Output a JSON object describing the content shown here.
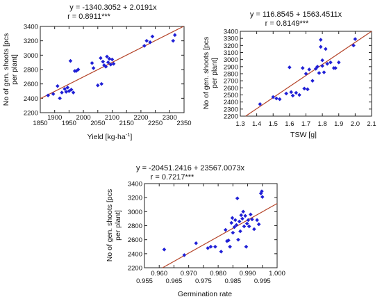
{
  "chart_data": [
    {
      "type": "scatter",
      "equation": "y = -1340.3052 + 2.0191x",
      "r": "r = 0.8911***",
      "xlabel": "Yield [kg·ha",
      "xlabel_sup": "-1",
      "xlabel_end": "]",
      "ylabel_line1": "No of gen. shoots [pcs",
      "ylabel_line2": "per plant]",
      "xlim": [
        1850,
        2350
      ],
      "ylim": [
        2200,
        3400
      ],
      "x_major_ticks": [
        "1850",
        "1950",
        "2050",
        "2150",
        "2250",
        "2350"
      ],
      "x_minor_ticks": [
        "1900",
        "2000",
        "2100",
        "2200",
        "2300"
      ],
      "y_ticks": [
        "2200",
        "2400",
        "2600",
        "2800",
        "3000",
        "3200",
        "3400"
      ],
      "fit": {
        "intercept": -1340.3052,
        "slope": 2.0191
      },
      "marker_color": "#1f1fd6",
      "line_color": "#b5452a",
      "points": [
        {
          "x": 1877,
          "y": 2440
        },
        {
          "x": 1895,
          "y": 2460
        },
        {
          "x": 1910,
          "y": 2570
        },
        {
          "x": 1918,
          "y": 2400
        },
        {
          "x": 1925,
          "y": 2480
        },
        {
          "x": 1935,
          "y": 2530
        },
        {
          "x": 1940,
          "y": 2490
        },
        {
          "x": 1945,
          "y": 2550
        },
        {
          "x": 1950,
          "y": 2500
        },
        {
          "x": 1955,
          "y": 2920
        },
        {
          "x": 1958,
          "y": 2520
        },
        {
          "x": 1965,
          "y": 2480
        },
        {
          "x": 1970,
          "y": 2780
        },
        {
          "x": 1975,
          "y": 2780
        },
        {
          "x": 1982,
          "y": 2800
        },
        {
          "x": 2030,
          "y": 2890
        },
        {
          "x": 2035,
          "y": 2820
        },
        {
          "x": 2050,
          "y": 2580
        },
        {
          "x": 2060,
          "y": 2960
        },
        {
          "x": 2063,
          "y": 2600
        },
        {
          "x": 2068,
          "y": 2910
        },
        {
          "x": 2072,
          "y": 2860
        },
        {
          "x": 2078,
          "y": 2840
        },
        {
          "x": 2082,
          "y": 2980
        },
        {
          "x": 2086,
          "y": 2900
        },
        {
          "x": 2090,
          "y": 2950
        },
        {
          "x": 2095,
          "y": 2870
        },
        {
          "x": 2100,
          "y": 2940
        },
        {
          "x": 2105,
          "y": 2880
        },
        {
          "x": 2212,
          "y": 3130
        },
        {
          "x": 2220,
          "y": 3200
        },
        {
          "x": 2232,
          "y": 3180
        },
        {
          "x": 2240,
          "y": 3260
        },
        {
          "x": 2312,
          "y": 3200
        },
        {
          "x": 2318,
          "y": 3280
        }
      ]
    },
    {
      "type": "scatter",
      "equation": "y = 116.8545 + 1563.4511x",
      "r": "r = 0.8149***",
      "xlabel": "TSW [g]",
      "ylabel_line1": "No of gen. shoots [pcs",
      "ylabel_line2": "per plant]",
      "xlim": [
        1.3,
        2.1
      ],
      "ylim": [
        2200,
        3400
      ],
      "x_ticks": [
        "1.3",
        "1.4",
        "1.5",
        "1.6",
        "1.7",
        "1.8",
        "1.9",
        "2.0",
        "2.1"
      ],
      "y_ticks": [
        "2200",
        "2300",
        "2400",
        "2500",
        "2600",
        "2700",
        "2800",
        "2900",
        "3000",
        "3100",
        "3200",
        "3300",
        "3400"
      ],
      "fit": {
        "intercept": 116.8545,
        "slope": 1563.4511
      },
      "marker_color": "#1f1fd6",
      "line_color": "#b5452a",
      "points": [
        {
          "x": 1.42,
          "y": 2370
        },
        {
          "x": 1.5,
          "y": 2470
        },
        {
          "x": 1.52,
          "y": 2450
        },
        {
          "x": 1.54,
          "y": 2440
        },
        {
          "x": 1.58,
          "y": 2520
        },
        {
          "x": 1.6,
          "y": 2890
        },
        {
          "x": 1.61,
          "y": 2540
        },
        {
          "x": 1.62,
          "y": 2490
        },
        {
          "x": 1.64,
          "y": 2530
        },
        {
          "x": 1.66,
          "y": 2500
        },
        {
          "x": 1.68,
          "y": 2880
        },
        {
          "x": 1.69,
          "y": 2590
        },
        {
          "x": 1.7,
          "y": 2800
        },
        {
          "x": 1.71,
          "y": 2580
        },
        {
          "x": 1.72,
          "y": 2860
        },
        {
          "x": 1.74,
          "y": 2700
        },
        {
          "x": 1.76,
          "y": 2870
        },
        {
          "x": 1.77,
          "y": 2900
        },
        {
          "x": 1.78,
          "y": 2810
        },
        {
          "x": 1.79,
          "y": 3180
        },
        {
          "x": 1.79,
          "y": 3280
        },
        {
          "x": 1.8,
          "y": 2990
        },
        {
          "x": 1.8,
          "y": 2910
        },
        {
          "x": 1.81,
          "y": 2820
        },
        {
          "x": 1.82,
          "y": 3150
        },
        {
          "x": 1.83,
          "y": 2940
        },
        {
          "x": 1.85,
          "y": 2960
        },
        {
          "x": 1.87,
          "y": 2880
        },
        {
          "x": 1.88,
          "y": 2880
        },
        {
          "x": 1.9,
          "y": 2960
        },
        {
          "x": 1.99,
          "y": 3200
        },
        {
          "x": 2.0,
          "y": 3290
        }
      ]
    },
    {
      "type": "scatter",
      "equation": "y = -20451.2416 + 23567.0073x",
      "r": "r = 0.7217***",
      "xlabel": "Germination rate",
      "ylabel_line1": "No of gen. shoots [pcs",
      "ylabel_line2": "per plant]",
      "xlim": [
        0.955,
        1.0
      ],
      "ylim": [
        2200,
        3400
      ],
      "x_major_ticks": [
        "0.955",
        "0.965",
        "0.975",
        "0.985",
        "0.995"
      ],
      "x_minor_ticks": [
        "0.960",
        "0.970",
        "0.980",
        "0.990",
        "1.000"
      ],
      "y_ticks": [
        "2200",
        "2400",
        "2600",
        "2800",
        "3000",
        "3200",
        "3400"
      ],
      "fit": {
        "intercept": -20451.2416,
        "slope": 23567.0073
      },
      "marker_color": "#1f1fd6",
      "line_color": "#b5452a",
      "points": [
        {
          "x": 0.9617,
          "y": 2460
        },
        {
          "x": 0.9685,
          "y": 2380
        },
        {
          "x": 0.9725,
          "y": 2550
        },
        {
          "x": 0.9765,
          "y": 2480
        },
        {
          "x": 0.9775,
          "y": 2500
        },
        {
          "x": 0.979,
          "y": 2500
        },
        {
          "x": 0.981,
          "y": 2430
        },
        {
          "x": 0.9825,
          "y": 2740
        },
        {
          "x": 0.983,
          "y": 2580
        },
        {
          "x": 0.9835,
          "y": 2590
        },
        {
          "x": 0.984,
          "y": 2500
        },
        {
          "x": 0.9845,
          "y": 2840
        },
        {
          "x": 0.9848,
          "y": 2910
        },
        {
          "x": 0.985,
          "y": 2700
        },
        {
          "x": 0.9855,
          "y": 2780
        },
        {
          "x": 0.9858,
          "y": 2880
        },
        {
          "x": 0.9862,
          "y": 2810
        },
        {
          "x": 0.9865,
          "y": 3190
        },
        {
          "x": 0.9868,
          "y": 2600
        },
        {
          "x": 0.9872,
          "y": 2860
        },
        {
          "x": 0.9875,
          "y": 2720
        },
        {
          "x": 0.9878,
          "y": 2950
        },
        {
          "x": 0.9882,
          "y": 2900
        },
        {
          "x": 0.9885,
          "y": 3000
        },
        {
          "x": 0.9888,
          "y": 2790
        },
        {
          "x": 0.9892,
          "y": 2940
        },
        {
          "x": 0.9895,
          "y": 2500
        },
        {
          "x": 0.9898,
          "y": 2830
        },
        {
          "x": 0.9902,
          "y": 2880
        },
        {
          "x": 0.9905,
          "y": 2790
        },
        {
          "x": 0.991,
          "y": 2960
        },
        {
          "x": 0.9915,
          "y": 2890
        },
        {
          "x": 0.9922,
          "y": 2750
        },
        {
          "x": 0.9932,
          "y": 2880
        },
        {
          "x": 0.9938,
          "y": 2820
        },
        {
          "x": 0.9945,
          "y": 3260
        },
        {
          "x": 0.9948,
          "y": 3290
        },
        {
          "x": 0.995,
          "y": 3210
        }
      ]
    }
  ]
}
